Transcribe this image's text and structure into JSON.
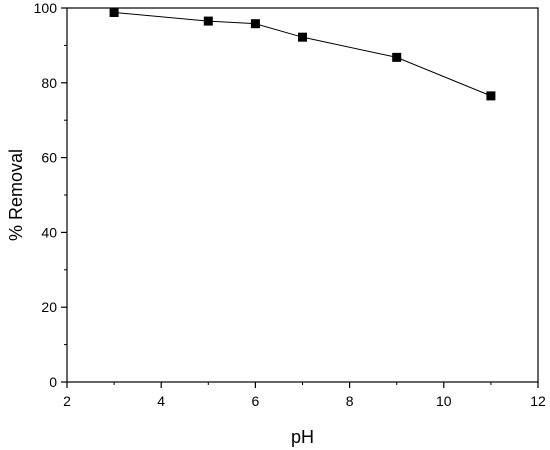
{
  "chart_data": {
    "type": "line",
    "title": "",
    "xlabel": "pH",
    "ylabel": "% Removal",
    "xlim": [
      2,
      12
    ],
    "ylim": [
      0,
      100
    ],
    "x_ticks": [
      2,
      4,
      6,
      8,
      10,
      12
    ],
    "y_ticks": [
      0,
      20,
      40,
      60,
      80,
      100
    ],
    "grid": false,
    "legend": "none",
    "series": [
      {
        "marker": "square",
        "color": "#000000",
        "points": [
          {
            "x": 3,
            "y": 98.8
          },
          {
            "x": 5,
            "y": 96.5
          },
          {
            "x": 6,
            "y": 95.8
          },
          {
            "x": 7,
            "y": 92.2
          },
          {
            "x": 9,
            "y": 86.8
          },
          {
            "x": 11,
            "y": 76.5
          }
        ]
      }
    ]
  }
}
